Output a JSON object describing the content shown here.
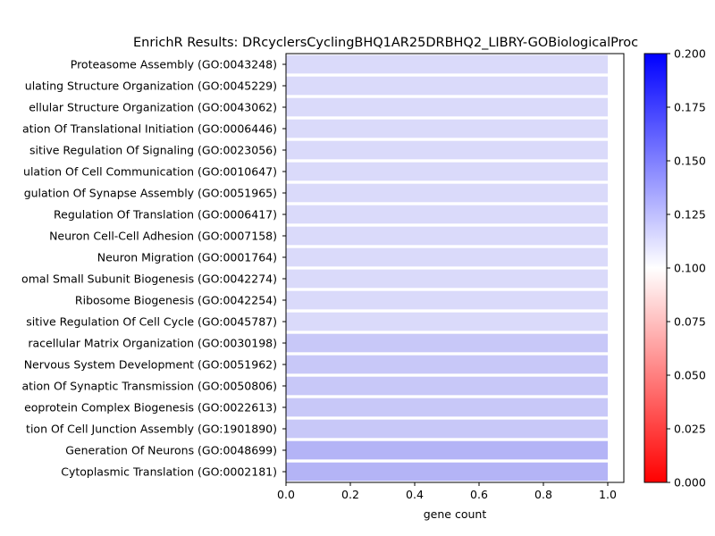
{
  "chart_data": {
    "type": "bar",
    "orientation": "horizontal",
    "title": "EnrichR Results: DRcyclersCyclingBHQ1AR25DRBHQ2_LIBRY-GOBiologicalProc",
    "xlabel": "gene count",
    "ylabel": "",
    "xlim": [
      0,
      1.05
    ],
    "xticks": [
      "0.0",
      "0.2",
      "0.4",
      "0.6",
      "0.8",
      "1.0"
    ],
    "grid": false,
    "categories": [
      "Proteasome Assembly (GO:0043248)",
      "ulating Structure Organization (GO:0045229)",
      "ellular Structure Organization (GO:0043062)",
      "ation Of Translational Initiation (GO:0006446)",
      "sitive Regulation Of Signaling (GO:0023056)",
      "ulation Of Cell Communication (GO:0010647)",
      "gulation Of Synapse Assembly (GO:0051965)",
      "Regulation Of Translation (GO:0006417)",
      "Neuron Cell-Cell Adhesion (GO:0007158)",
      "Neuron Migration (GO:0001764)",
      "omal Small Subunit Biogenesis (GO:0042274)",
      "Ribosome Biogenesis (GO:0042254)",
      "sitive Regulation Of Cell Cycle (GO:0045787)",
      "racellular Matrix Organization (GO:0030198)",
      "Nervous System Development (GO:0051962)",
      "ation Of Synaptic Transmission (GO:0050806)",
      "eoprotein Complex Biogenesis (GO:0022613)",
      "tion Of Cell Junction Assembly (GO:1901890)",
      "Generation Of Neurons (GO:0048699)",
      "Cytoplasmic Translation (GO:0002181)"
    ],
    "values": [
      1,
      1,
      1,
      1,
      1,
      1,
      1,
      1,
      1,
      1,
      1,
      1,
      1,
      1,
      1,
      1,
      1,
      1,
      1,
      1
    ],
    "bar_colors": [
      "#dadafa",
      "#dadafa",
      "#dadafa",
      "#dadafa",
      "#dadafa",
      "#dadafa",
      "#dadafa",
      "#dadafa",
      "#dadafa",
      "#dadafa",
      "#dadafa",
      "#dadafa",
      "#dadafa",
      "#c8c8f8",
      "#c8c8f8",
      "#c8c8f8",
      "#c8c8f8",
      "#c8c8f8",
      "#b4b4f6",
      "#b4b4f6"
    ],
    "colorbar": {
      "range": [
        0.0,
        0.2
      ],
      "ticks": [
        "0.000",
        "0.025",
        "0.050",
        "0.075",
        "0.100",
        "0.125",
        "0.150",
        "0.175",
        "0.200"
      ],
      "colormap": "bwr_r",
      "low_color": "#ff0000",
      "mid_color": "#ffffff",
      "high_color": "#0000ff"
    }
  }
}
